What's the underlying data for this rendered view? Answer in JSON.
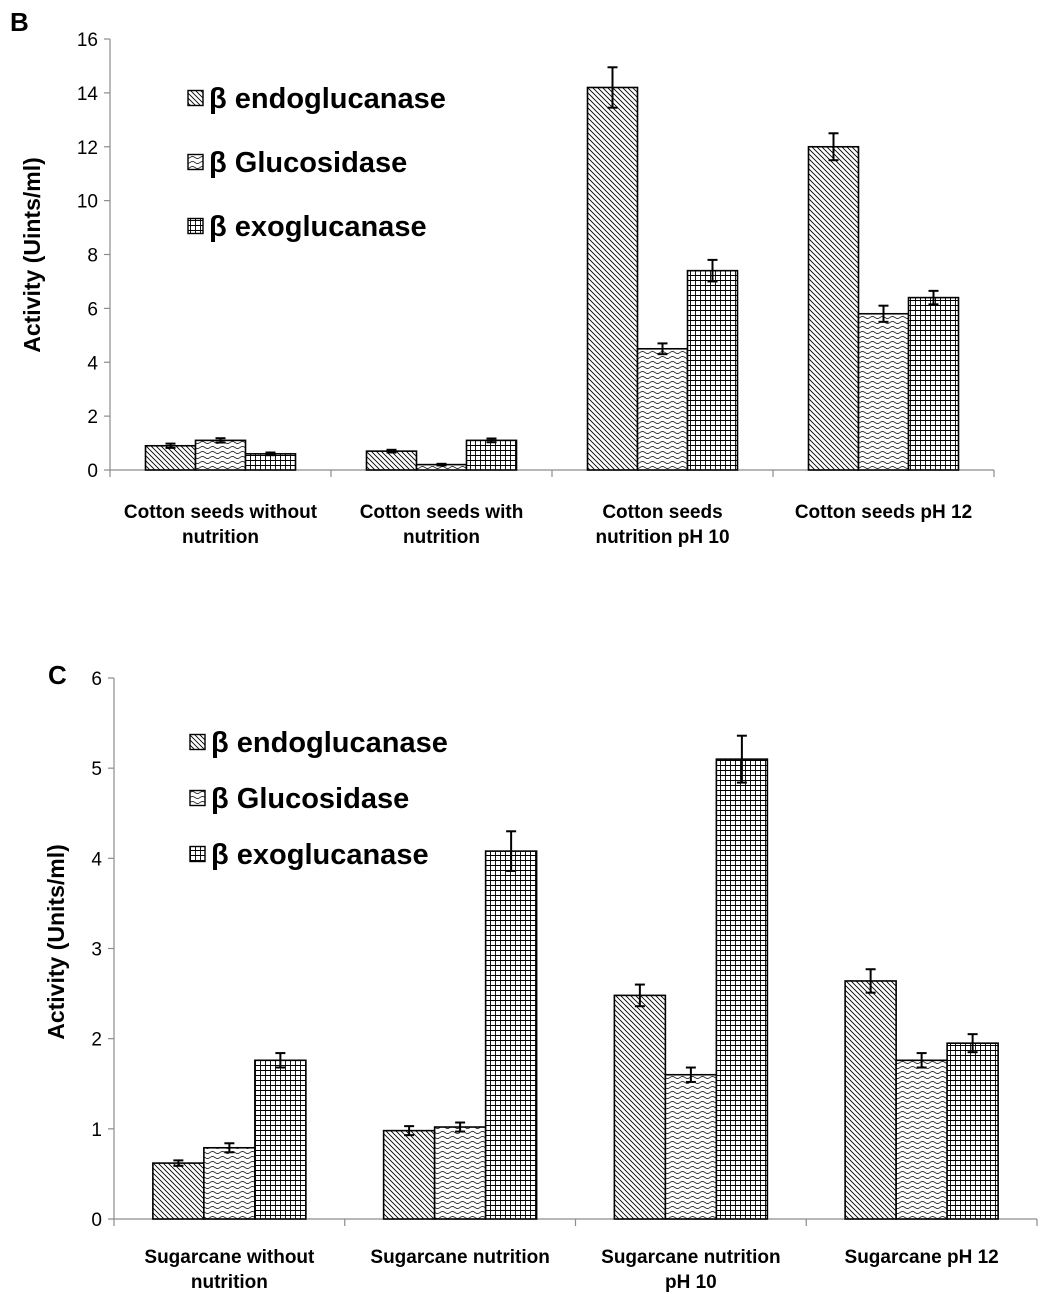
{
  "chart_data": [
    {
      "type": "bar",
      "panel_label": "B",
      "ylabel": "Activity (Uints/ml)",
      "ylim": [
        0,
        16
      ],
      "yticks": [
        0,
        2,
        4,
        6,
        8,
        10,
        12,
        14,
        16
      ],
      "grid": false,
      "legend_placement": "top-left",
      "categories": [
        [
          "Cotton seeds  without",
          "nutrition"
        ],
        [
          "Cotton seeds  with",
          "nutrition"
        ],
        [
          "Cotton seeds",
          "nutrition pH 10"
        ],
        [
          "Cotton seeds  pH 12"
        ]
      ],
      "series": [
        {
          "name": "β endoglucanase",
          "pattern": "diag",
          "values": [
            0.9,
            0.7,
            14.2,
            12.0
          ],
          "errors": [
            0.08,
            0.05,
            0.75,
            0.5
          ]
        },
        {
          "name": "β Glucosidase",
          "pattern": "wave",
          "values": [
            1.1,
            0.2,
            4.5,
            5.8
          ],
          "errors": [
            0.08,
            0.03,
            0.2,
            0.3
          ]
        },
        {
          "name": "β exoglucanase",
          "pattern": "grid",
          "values": [
            0.6,
            1.1,
            7.4,
            6.4
          ],
          "errors": [
            0.05,
            0.07,
            0.4,
            0.25
          ]
        }
      ]
    },
    {
      "type": "bar",
      "panel_label": "C",
      "ylabel": "Activity (Units/ml)",
      "ylim": [
        0,
        6
      ],
      "yticks": [
        0,
        1,
        2,
        3,
        4,
        5,
        6
      ],
      "grid": false,
      "legend_placement": "top-left",
      "categories": [
        [
          "Sugarcane without",
          "nutrition"
        ],
        [
          "Sugarcane nutrition"
        ],
        [
          "Sugarcane nutrition",
          "pH 10"
        ],
        [
          "Sugarcane pH 12"
        ]
      ],
      "series": [
        {
          "name": "β endoglucanase",
          "pattern": "diag",
          "values": [
            0.62,
            0.98,
            2.48,
            2.64
          ],
          "errors": [
            0.03,
            0.05,
            0.12,
            0.13
          ]
        },
        {
          "name": "β Glucosidase",
          "pattern": "wave",
          "values": [
            0.79,
            1.02,
            1.6,
            1.76
          ],
          "errors": [
            0.05,
            0.05,
            0.08,
            0.08
          ]
        },
        {
          "name": "β exoglucanase",
          "pattern": "grid",
          "values": [
            1.76,
            4.08,
            5.1,
            1.95
          ],
          "errors": [
            0.08,
            0.22,
            0.26,
            0.1
          ]
        }
      ]
    }
  ]
}
